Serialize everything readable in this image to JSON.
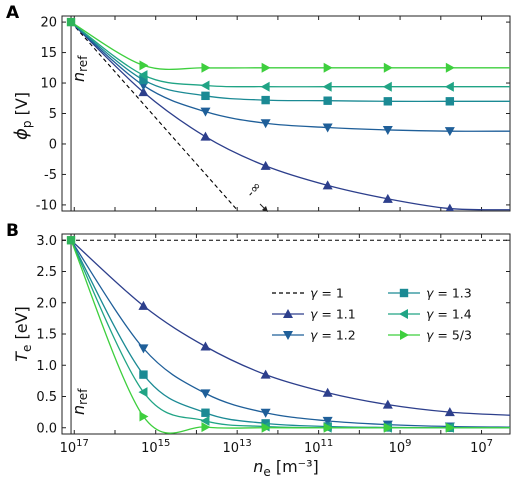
{
  "chart_data": [
    {
      "panel": "A",
      "type": "line",
      "ylabel": "ϕp [V]",
      "x_scale": "log-reversed",
      "xlim": [
        2e+17,
        2000000.0
      ],
      "ylim": [
        -11,
        21
      ],
      "yticks": [
        20,
        15,
        10,
        5,
        0,
        -5,
        -10
      ],
      "annotation_ref": "nref",
      "annotation_arrow": "-∞",
      "reference_series": {
        "name": "γ = 1",
        "x": [
          1.2e+17,
          7000000000000.0
        ],
        "values": [
          20.0,
          -12.0
        ]
      },
      "series": [
        {
          "name": "γ = 1.1",
          "x": [
            1.2e+17,
            2000000000000000.0,
            60000000000000.0,
            2000000000000.0,
            60000000000.0,
            2000000000.0,
            60000000.0,
            2000000.0
          ],
          "values": [
            20.0,
            8.5,
            1.2,
            -3.6,
            -6.8,
            -9.0,
            -10.6,
            -10.8
          ]
        },
        {
          "name": "γ = 1.2",
          "x": [
            1.2e+17,
            2000000000000000.0,
            60000000000000.0,
            2000000000000.0,
            60000000000.0,
            2000000000.0,
            60000000.0,
            2000000.0
          ],
          "values": [
            20.0,
            9.6,
            5.3,
            3.4,
            2.7,
            2.3,
            2.1,
            2.1
          ]
        },
        {
          "name": "γ = 1.3",
          "x": [
            1.2e+17,
            2000000000000000.0,
            60000000000000.0,
            2000000000000.0,
            60000000000.0,
            2000000000.0,
            60000000.0,
            2000000.0
          ],
          "values": [
            20.0,
            10.5,
            7.9,
            7.2,
            7.1,
            7.0,
            7.0,
            7.0
          ]
        },
        {
          "name": "γ = 1.4",
          "x": [
            1.2e+17,
            2000000000000000.0,
            60000000000000.0,
            2000000000000.0,
            60000000000.0,
            2000000000.0,
            60000000.0,
            2000000.0
          ],
          "values": [
            20.0,
            11.3,
            9.6,
            9.4,
            9.4,
            9.4,
            9.4,
            9.4
          ]
        },
        {
          "name": "γ = 5/3",
          "x": [
            1.2e+17,
            2000000000000000.0,
            60000000000000.0,
            2000000000000.0,
            60000000000.0,
            2000000000.0,
            60000000.0,
            2000000.0
          ],
          "values": [
            20.0,
            12.9,
            12.5,
            12.5,
            12.5,
            12.5,
            12.5,
            12.5
          ]
        }
      ]
    },
    {
      "panel": "B",
      "type": "line",
      "xlabel": "ne [m⁻³]",
      "ylabel": "Te [eV]",
      "x_scale": "log-reversed",
      "xlim": [
        2e+17,
        2000000.0
      ],
      "ylim": [
        -0.1,
        3.1
      ],
      "yticks": [
        "3.0",
        "2.5",
        "2.0",
        "1.5",
        "1.0",
        "0.5",
        "0.0"
      ],
      "xticks": [
        {
          "x": 1e+17,
          "base": "10",
          "exp": "17"
        },
        {
          "x": 1000000000000000.0,
          "base": "10",
          "exp": "15"
        },
        {
          "x": 10000000000000.0,
          "base": "10",
          "exp": "13"
        },
        {
          "x": 100000000000.0,
          "base": "10",
          "exp": "11"
        },
        {
          "x": 1000000000.0,
          "base": "10",
          "exp": "9"
        },
        {
          "x": 10000000.0,
          "base": "10",
          "exp": "7"
        }
      ],
      "annotation_ref": "nref",
      "legend_position": "right",
      "reference_series": {
        "name": "γ = 1",
        "x": [
          2e+17,
          2000000.0
        ],
        "values": [
          3.0,
          3.0
        ]
      },
      "series": [
        {
          "name": "γ = 1.1",
          "x": [
            1.2e+17,
            2000000000000000.0,
            60000000000000.0,
            2000000000000.0,
            60000000000.0,
            2000000000.0,
            60000000.0,
            2000000.0
          ],
          "values": [
            3.0,
            1.95,
            1.3,
            0.85,
            0.56,
            0.37,
            0.25,
            0.2
          ]
        },
        {
          "name": "γ = 1.2",
          "x": [
            1.2e+17,
            2000000000000000.0,
            60000000000000.0,
            2000000000000.0,
            60000000000.0,
            2000000000.0,
            60000000.0,
            2000000.0
          ],
          "values": [
            3.0,
            1.27,
            0.55,
            0.24,
            0.11,
            0.05,
            0.02,
            0.01
          ]
        },
        {
          "name": "γ = 1.3",
          "x": [
            1.2e+17,
            2000000000000000.0,
            60000000000000.0,
            2000000000000.0,
            60000000000.0,
            2000000000.0,
            60000000.0,
            2000000.0
          ],
          "values": [
            3.0,
            0.85,
            0.24,
            0.07,
            0.02,
            0.005,
            0.0,
            0.0
          ]
        },
        {
          "name": "γ = 1.4",
          "x": [
            1.2e+17,
            2000000000000000.0,
            60000000000000.0,
            2000000000000.0,
            60000000000.0,
            2000000000.0,
            60000000.0,
            2000000.0
          ],
          "values": [
            3.0,
            0.57,
            0.11,
            0.02,
            0.0,
            0.0,
            0.0,
            0.0
          ]
        },
        {
          "name": "γ = 5/3",
          "x": [
            1.2e+17,
            2000000000000000.0,
            60000000000000.0,
            2000000000000.0,
            60000000000.0,
            2000000000.0,
            60000000.0,
            2000000.0
          ],
          "values": [
            3.0,
            0.18,
            0.01,
            0.0,
            0.0,
            0.0,
            0.0,
            0.0
          ]
        }
      ]
    }
  ],
  "series_style": {
    "γ = 1": {
      "color": "#000000",
      "marker": "none",
      "dash": "4,3"
    },
    "γ = 1.1": {
      "color": "#2d3f8c",
      "marker": "triangle-up"
    },
    "γ = 1.2": {
      "color": "#1f5f99",
      "marker": "triangle-down"
    },
    "γ = 1.3": {
      "color": "#1b8a94",
      "marker": "square"
    },
    "γ = 1.4": {
      "color": "#20a485",
      "marker": "triangle-left"
    },
    "γ = 5/3": {
      "color": "#3ecf3e",
      "marker": "triangle-right"
    }
  },
  "legend": [
    {
      "name": "γ = 1",
      "label_pre": "γ",
      "label_post": " = 1"
    },
    {
      "name": "γ = 1.3",
      "label_pre": "γ",
      "label_post": " = 1.3"
    },
    {
      "name": "γ = 1.1",
      "label_pre": "γ",
      "label_post": " = 1.1"
    },
    {
      "name": "γ = 1.4",
      "label_pre": "γ",
      "label_post": " = 1.4"
    },
    {
      "name": "γ = 1.2",
      "label_pre": "γ",
      "label_post": " = 1.2"
    },
    {
      "name": "γ = 5/3",
      "label_pre": "γ",
      "label_post": " = 5/3"
    }
  ]
}
